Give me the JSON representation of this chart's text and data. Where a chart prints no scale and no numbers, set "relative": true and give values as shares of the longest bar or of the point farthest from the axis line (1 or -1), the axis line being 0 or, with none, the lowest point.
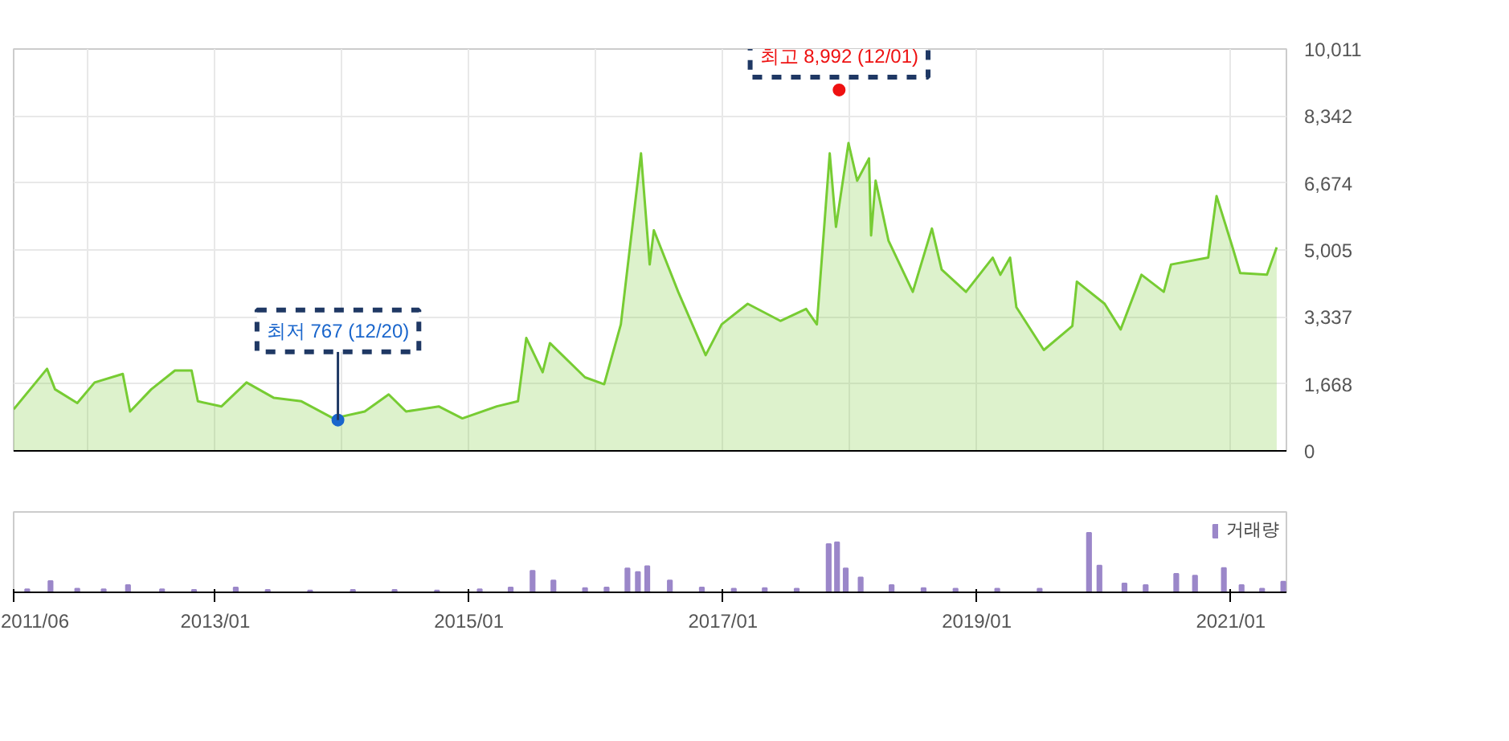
{
  "chart_data": [
    {
      "type": "area",
      "xlim": [
        "2011-06-01",
        "2021-06-10"
      ],
      "ylim": [
        0,
        10011
      ],
      "yticks": [
        0,
        {
          "value": 1668,
          "label": "1,668"
        },
        {
          "value": 3337,
          "label": "3,337"
        },
        {
          "value": 5005,
          "label": "5,005"
        },
        {
          "value": 6674,
          "label": "6,674"
        },
        {
          "value": 8342,
          "label": "8,342"
        },
        {
          "value": 10011,
          "label": "10,011"
        }
      ],
      "xticks": [
        {
          "value": "2012-01-01",
          "label": null
        },
        {
          "value": "2013-01-01",
          "label": null
        },
        {
          "value": "2014-01-01",
          "label": null
        },
        {
          "value": "2015-01-01",
          "label": null
        },
        {
          "value": "2016-01-01",
          "label": null
        },
        {
          "value": "2017-01-01",
          "label": null
        },
        {
          "value": "2018-01-01",
          "label": null
        },
        {
          "value": "2019-01-01",
          "label": null
        },
        {
          "value": "2020-01-01",
          "label": null
        },
        {
          "value": "2021-01-01",
          "label": null
        }
      ],
      "tick_labels": "y",
      "grid": true,
      "series": [
        {
          "color": "#77cc33",
          "x": [
            "2011-06-01",
            "2011-09-05",
            "2011-09-28",
            "2011-12-01",
            "2012-01-20",
            "2012-04-10",
            "2012-05-01",
            "2012-07-01",
            "2012-09-07",
            "2012-10-25",
            "2012-11-12",
            "2013-01-19",
            "2013-04-01",
            "2013-06-19",
            "2013-09-06",
            "2013-12-07",
            "2014-03-07",
            "2014-05-15",
            "2014-07-04",
            "2014-10-06",
            "2014-12-13",
            "2015-03-22",
            "2015-05-22",
            "2015-06-15",
            "2015-08-01",
            "2015-08-22",
            "2015-12-01",
            "2016-01-25",
            "2016-03-13",
            "2016-05-10",
            "2016-06-04",
            "2016-06-16",
            "2016-08-25",
            "2016-11-12",
            "2016-12-28",
            "2017-03-13",
            "2017-06-15",
            "2017-08-28",
            "2017-09-28",
            "2017-11-04",
            "2017-11-22",
            "2017-12-28",
            "2018-01-22",
            "2018-02-25",
            "2018-03-03",
            "2018-03-16",
            "2018-04-22",
            "2018-07-01",
            "2018-08-25",
            "2018-09-22",
            "2018-12-01",
            "2019-02-16",
            "2019-03-10",
            "2019-04-07",
            "2019-04-25",
            "2019-07-13",
            "2019-10-03",
            "2019-10-16",
            "2020-01-04",
            "2020-02-19",
            "2020-04-19",
            "2020-06-22",
            "2020-07-13",
            "2020-10-28",
            "2020-11-21",
            "2021-01-06",
            "2021-01-28",
            "2021-04-15",
            "2021-05-13"
          ],
          "values": [
            1035,
            2045,
            1534,
            1193,
            1704,
            1917,
            980,
            1534,
            2002,
            2002,
            1235,
            1108,
            1704,
            1320,
            1235,
            809,
            980,
            1406,
            980,
            1108,
            809,
            1108,
            1235,
            2812,
            1960,
            2684,
            1832,
            1661,
            3152,
            7412,
            4643,
            5495,
            3962,
            2386,
            3152,
            3664,
            3238,
            3536,
            3152,
            7412,
            5581,
            7668,
            6731,
            7285,
            5368,
            6731,
            5240,
            3962,
            5538,
            4516,
            3962,
            4814,
            4388,
            4814,
            3578,
            2513,
            3110,
            4217,
            3664,
            3025,
            4388,
            3962,
            4643,
            4814,
            6347,
            5070,
            4430,
            4388,
            5070
          ]
        }
      ],
      "annotations": [
        {
          "text": "최고 8,992 (12/01)",
          "x": "2017-12-01",
          "y": 8992
        },
        {
          "text": "최저 767 (12/20)",
          "x": "2013-12-20",
          "y": 767
        }
      ]
    },
    {
      "type": "bar",
      "relative": true,
      "xlim": [
        "2011-06-01",
        "2021-06-10"
      ],
      "xticks": [
        "2011/06",
        {
          "value": "2013-01-01",
          "label": "2013/01"
        },
        {
          "value": "2015-01-01",
          "label": "2015/01"
        },
        {
          "value": "2017-01-01",
          "label": "2017/01"
        },
        {
          "value": "2019-01-01",
          "label": "2019/01"
        },
        {
          "value": "2021-01-01",
          "label": "2021/01"
        }
      ],
      "legend": "top right",
      "series": [
        {
          "name": "거래량",
          "color": "#9b87c9",
          "x": [
            "2011-07-10",
            "2011-09-15",
            "2011-12-01",
            "2012-02-15",
            "2012-04-25",
            "2012-08-01",
            "2012-11-01",
            "2013-03-01",
            "2013-06-01",
            "2013-10-01",
            "2014-02-01",
            "2014-06-01",
            "2014-10-01",
            "2015-02-01",
            "2015-05-01",
            "2015-07-03",
            "2015-09-01",
            "2015-12-01",
            "2016-02-01",
            "2016-04-01",
            "2016-05-01",
            "2016-05-28",
            "2016-08-01",
            "2016-11-01",
            "2017-02-01",
            "2017-05-01",
            "2017-08-01",
            "2017-11-01",
            "2017-11-25",
            "2017-12-20",
            "2018-02-01",
            "2018-05-01",
            "2018-08-01",
            "2018-11-01",
            "2019-03-01",
            "2019-07-01",
            "2019-11-20",
            "2019-12-20",
            "2020-03-01",
            "2020-05-01",
            "2020-07-28",
            "2020-09-20",
            "2020-12-12",
            "2021-02-01",
            "2021-04-01",
            "2021-06-01"
          ],
          "values": [
            0.05,
            0.19,
            0.06,
            0.05,
            0.12,
            0.05,
            0.04,
            0.08,
            0.04,
            0.03,
            0.04,
            0.04,
            0.03,
            0.05,
            0.08,
            0.36,
            0.2,
            0.07,
            0.08,
            0.4,
            0.34,
            0.44,
            0.2,
            0.08,
            0.06,
            0.07,
            0.06,
            0.81,
            0.84,
            0.4,
            0.25,
            0.12,
            0.07,
            0.06,
            0.06,
            0.06,
            1,
            0.45,
            0.15,
            0.12,
            0.31,
            0.28,
            0.41,
            0.12,
            0.06,
            0.18
          ]
        }
      ]
    }
  ]
}
